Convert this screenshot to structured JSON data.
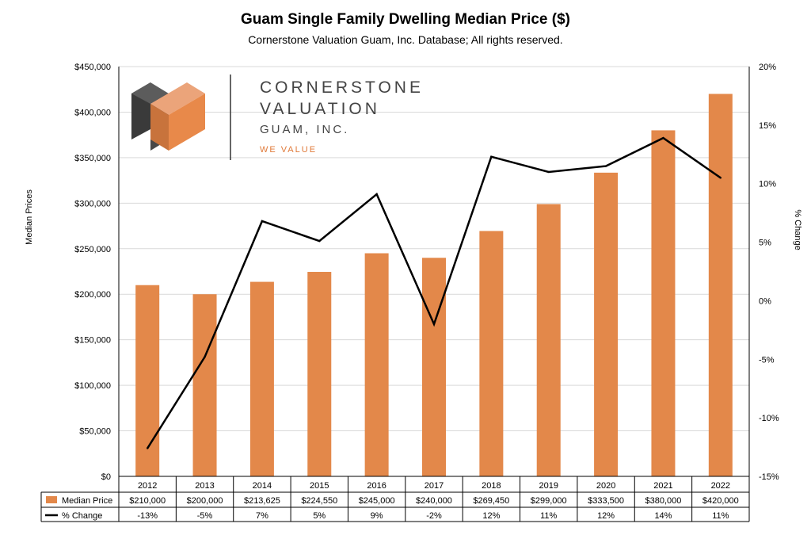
{
  "title": "Guam Single Family Dwelling Median Price ($)",
  "subtitle": "Cornerstone Valuation Guam, Inc. Database; All rights reserved.",
  "logo": {
    "line1": "CORNERSTONE",
    "line2": "VALUATION",
    "line3": "GUAM, INC.",
    "tagline": "WE VALUE",
    "colors": {
      "dark": "#3a3a3a",
      "mid": "#5c5c5c",
      "orange": "#e8894a",
      "orange_light": "#eba47a",
      "orange_dark": "#c8733c",
      "tagline": "#e07a3a"
    }
  },
  "chart_data": {
    "type": "bar",
    "categories": [
      "2012",
      "2013",
      "2014",
      "2015",
      "2016",
      "2017",
      "2018",
      "2019",
      "2020",
      "2021",
      "2022"
    ],
    "series": [
      {
        "name": "Median Price",
        "type": "bar",
        "axis": "left",
        "color": "#E3884A",
        "values": [
          210000,
          200000,
          213625,
          224550,
          245000,
          240000,
          269450,
          299000,
          333500,
          380000,
          420000
        ]
      },
      {
        "name": "% Change",
        "type": "line",
        "axis": "right",
        "color": "#000000",
        "values": [
          -12.6,
          -4.8,
          6.8,
          5.1,
          9.1,
          -2.0,
          12.3,
          11.0,
          11.5,
          13.9,
          10.5
        ]
      }
    ],
    "ylabel": "Median Prices",
    "y2label": "% Change",
    "ylim": [
      0,
      450000
    ],
    "y2lim": [
      -15,
      20
    ],
    "yticks": [
      "$0",
      "$50,000",
      "$100,000",
      "$150,000",
      "$200,000",
      "$250,000",
      "$300,000",
      "$350,000",
      "$400,000",
      "$450,000"
    ],
    "y2ticks": [
      "-15%",
      "-10%",
      "-5%",
      "0%",
      "5%",
      "10%",
      "15%",
      "20%"
    ],
    "grid": true,
    "data_table": {
      "rows": [
        {
          "label": "Median Price",
          "cells": [
            "$210,000",
            "$200,000",
            "$213,625",
            "$224,550",
            "$245,000",
            "$240,000",
            "$269,450",
            "$299,000",
            "$333,500",
            "$380,000",
            "$420,000"
          ]
        },
        {
          "label": "% Change",
          "cells": [
            "-13%",
            "-5%",
            "7%",
            "5%",
            "9%",
            "-2%",
            "12%",
            "11%",
            "12%",
            "14%",
            "11%"
          ]
        }
      ]
    }
  }
}
